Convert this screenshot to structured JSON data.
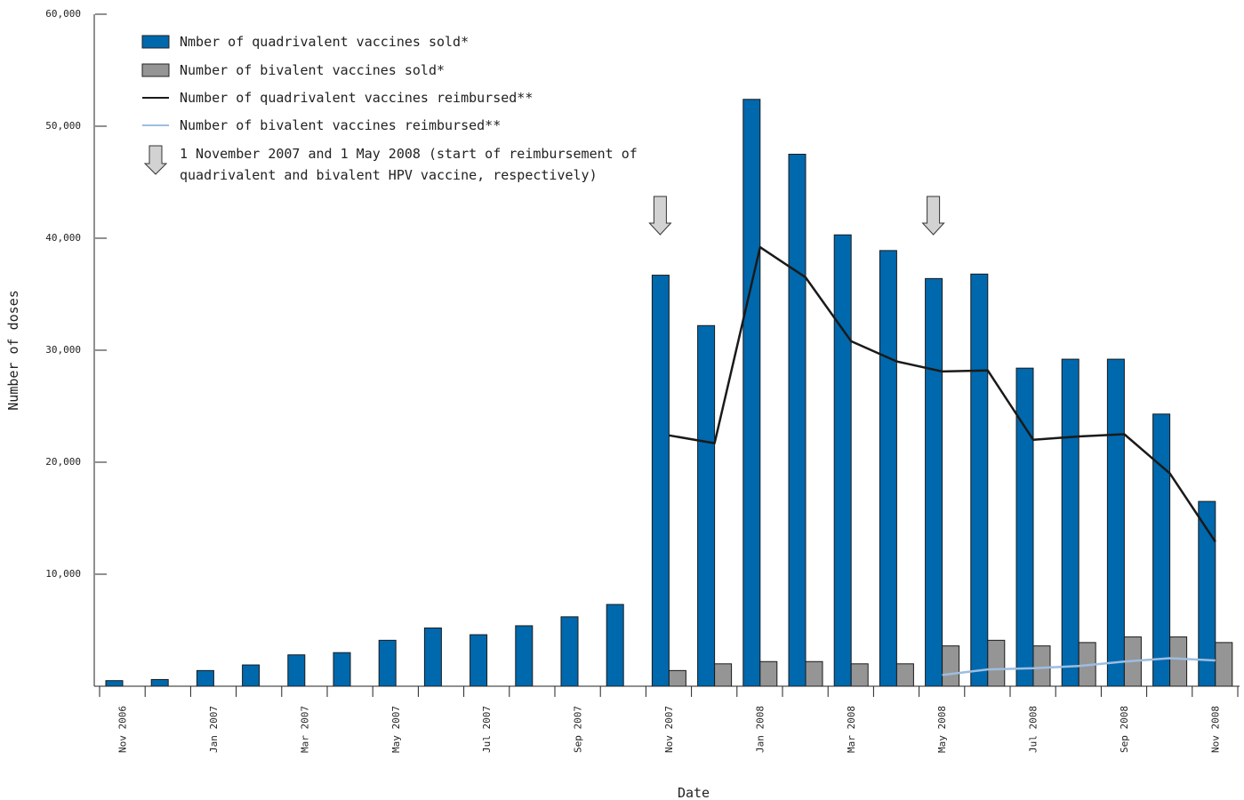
{
  "colors": {
    "quadrivalent_sold": "#0068ad",
    "bivalent_sold": "#959595",
    "quadrivalent_reimbursed": "#1a1a1a",
    "bivalent_reimbursed": "#9dbde0",
    "arrow_fill": "#d2d2d2"
  },
  "legend": {
    "quad_sold": "Nmber of quadrivalent vaccines sold*",
    "biv_sold": "Number of bivalent vaccines sold*",
    "quad_reimb": "Number of quadrivalent vaccines reimbursed**",
    "biv_reimb": "Number of bivalent vaccines reimbursed**",
    "arrow_line1": "1 November 2007 and 1 May 2008 (start of reimbursement of",
    "arrow_line2": "quadrivalent and bivalent HPV vaccine, respectively)"
  },
  "chart_data": {
    "type": "bar",
    "xlabel": "Date",
    "ylabel": "Number of doses",
    "ylim": [
      0,
      60000
    ],
    "y_ticks": [
      "10,000",
      "20,000",
      "30,000",
      "40,000",
      "50,000",
      "60,000"
    ],
    "y_tick_values": [
      10000,
      20000,
      30000,
      40000,
      50000,
      60000
    ],
    "categories": [
      "Nov 2006",
      "Dec 2006",
      "Jan 2007",
      "Feb 2007",
      "Mar 2007",
      "Apr 2007",
      "May 2007",
      "Jun 2007",
      "Jul 2007",
      "Aug 2007",
      "Sep 2007",
      "Oct 2007",
      "Nov 2007",
      "Dec 2007",
      "Jan 2008",
      "Feb 2008",
      "Mar 2008",
      "Apr 2008",
      "May 2008",
      "Jun 2008",
      "Jul 2008",
      "Aug 2008",
      "Sep 2008",
      "Oct 2008",
      "Nov 2008"
    ],
    "date_labels": [
      "Nov 2006",
      "",
      "Jan 2007",
      "",
      "Mar 2007",
      "",
      "May 2007",
      "",
      "Jul 2007",
      "",
      "Sep 2007",
      "",
      "Nov 2007",
      "",
      "Jan 2008",
      "",
      "Mar 2008",
      "",
      "May 2008",
      "",
      "Jul 2008",
      "",
      "Sep 2008",
      "",
      "Nov 2008"
    ],
    "series": [
      {
        "name": "Nmber of quadrivalent vaccines sold*",
        "kind": "bar",
        "values": [
          500,
          600,
          1400,
          1900,
          2800,
          3000,
          4100,
          5200,
          4600,
          5400,
          6200,
          7300,
          36700,
          32200,
          52400,
          47500,
          40300,
          38900,
          36400,
          36800,
          28400,
          29200,
          29200,
          24300,
          16500
        ]
      },
      {
        "name": "Number of bivalent vaccines sold*",
        "kind": "bar",
        "values": [
          null,
          null,
          null,
          null,
          null,
          null,
          null,
          null,
          null,
          null,
          null,
          null,
          1400,
          2000,
          2200,
          2200,
          2000,
          2000,
          3600,
          4100,
          3600,
          3900,
          4400,
          4400,
          3900
        ]
      },
      {
        "name": "Number of quadrivalent vaccines reimbursed**",
        "kind": "line",
        "values": [
          null,
          null,
          null,
          null,
          null,
          null,
          null,
          null,
          null,
          null,
          null,
          null,
          22400,
          21700,
          39200,
          36500,
          30800,
          29000,
          28100,
          28200,
          22000,
          22300,
          22500,
          19000,
          12900
        ]
      },
      {
        "name": "Number of bivalent vaccines reimbursed**",
        "kind": "line",
        "values": [
          null,
          null,
          null,
          null,
          null,
          null,
          null,
          null,
          null,
          null,
          null,
          null,
          null,
          null,
          null,
          null,
          null,
          null,
          1000,
          1500,
          1600,
          1800,
          2200,
          2500,
          2300
        ]
      }
    ],
    "annotations": [
      "Nov 2007",
      "May 2008"
    ],
    "grid": false,
    "legend_position": "top-left"
  }
}
